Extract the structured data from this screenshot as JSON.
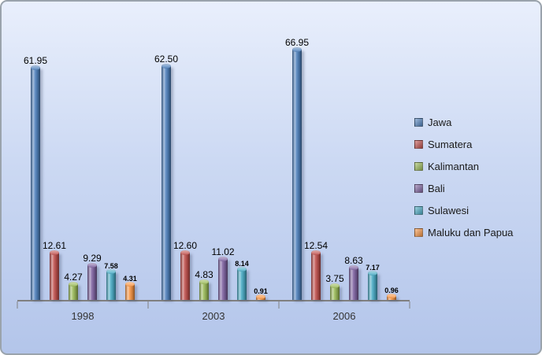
{
  "chart_data": {
    "type": "bar",
    "subtype": "cylinder-3d",
    "title": "",
    "xlabel": "",
    "ylabel": "",
    "categories": [
      "1998",
      "2003",
      "2006"
    ],
    "series": [
      {
        "name": "Jawa",
        "color": "#4F81BD",
        "data_label_size": "normal",
        "values": [
          61.95,
          62.5,
          66.95
        ]
      },
      {
        "name": "Sumatera",
        "color": "#C0504D",
        "data_label_size": "normal",
        "values": [
          12.61,
          12.6,
          12.54
        ]
      },
      {
        "name": "Kalimantan",
        "color": "#9BBB59",
        "data_label_size": "normal",
        "values": [
          4.27,
          4.83,
          3.75
        ]
      },
      {
        "name": "Bali",
        "color": "#8064A2",
        "data_label_size": "normal",
        "values": [
          9.29,
          11.02,
          8.63
        ]
      },
      {
        "name": "Sulawesi",
        "color": "#4BACC6",
        "data_label_size": "small",
        "values": [
          7.58,
          8.14,
          7.17
        ]
      },
      {
        "name": "Maluku dan Papua",
        "color": "#F79646",
        "data_label_size": "small",
        "values": [
          0,
          0,
          0
        ]
      }
    ],
    "series_fix_note": "",
    "ylim": [
      0,
      70
    ],
    "grid": false,
    "axes_visible": {
      "x": true,
      "y": false
    },
    "data_labels": true,
    "legend_position": "right",
    "legend_labels": [
      "Jawa",
      "Sumatera",
      "Kalimantan",
      "Bali",
      "Sulawesi",
      "Maluku dan Papua"
    ]
  }
}
